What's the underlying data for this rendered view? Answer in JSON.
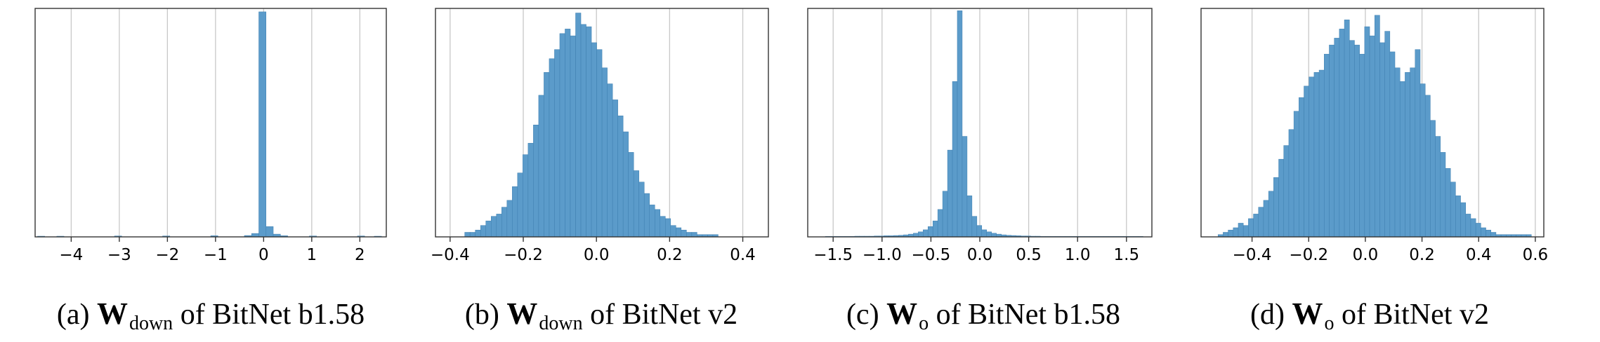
{
  "colors": {
    "bar_fill": "#5b9bca",
    "bar_stroke": "#3e7fb0",
    "grid": "#c8c8c8",
    "axis": "#333333"
  },
  "chart_data": [
    {
      "type": "histogram",
      "caption": {
        "label": "(a)",
        "symbol": "W",
        "subscript": "down",
        "text": "of BitNet b1.58"
      },
      "xlim": [
        -4.75,
        2.55
      ],
      "xticks": [
        -4,
        -3,
        -2,
        -1,
        0,
        1,
        2
      ],
      "xtick_labels": [
        "−4",
        "−3",
        "−2",
        "−1",
        "0",
        "1",
        "2"
      ],
      "ylim": [
        0,
        1.0
      ],
      "grid_x": true,
      "bins": [
        {
          "x0": -4.7,
          "x1": -4.55,
          "h": 0.003
        },
        {
          "x0": -4.3,
          "x1": -4.15,
          "h": 0.003
        },
        {
          "x0": -3.1,
          "x1": -2.95,
          "h": 0.004
        },
        {
          "x0": -2.1,
          "x1": -1.95,
          "h": 0.004
        },
        {
          "x0": -1.1,
          "x1": -0.95,
          "h": 0.005
        },
        {
          "x0": -0.4,
          "x1": -0.25,
          "h": 0.006
        },
        {
          "x0": -0.25,
          "x1": -0.1,
          "h": 0.015
        },
        {
          "x0": -0.1,
          "x1": 0.05,
          "h": 0.985
        },
        {
          "x0": 0.05,
          "x1": 0.2,
          "h": 0.045
        },
        {
          "x0": 0.2,
          "x1": 0.35,
          "h": 0.012
        },
        {
          "x0": 0.35,
          "x1": 0.5,
          "h": 0.005
        },
        {
          "x0": 0.95,
          "x1": 1.1,
          "h": 0.004
        },
        {
          "x0": 1.95,
          "x1": 2.1,
          "h": 0.004
        },
        {
          "x0": 2.3,
          "x1": 2.45,
          "h": 0.003
        }
      ]
    },
    {
      "type": "histogram",
      "caption": {
        "label": "(b)",
        "symbol": "W",
        "subscript": "down",
        "text": "of BitNet v2"
      },
      "xlim": [
        -0.44,
        0.47
      ],
      "xticks": [
        -0.4,
        -0.2,
        0.0,
        0.2,
        0.4
      ],
      "xtick_labels": [
        "−0.4",
        "−0.2",
        "0.0",
        "0.2",
        "0.4"
      ],
      "ylim": [
        0,
        1.0
      ],
      "grid_x": true,
      "bins_start": -0.36,
      "bin_width": 0.01443,
      "heights": [
        0.02,
        0.02,
        0.03,
        0.05,
        0.07,
        0.09,
        0.1,
        0.13,
        0.16,
        0.22,
        0.28,
        0.36,
        0.41,
        0.49,
        0.62,
        0.72,
        0.78,
        0.82,
        0.89,
        0.91,
        0.88,
        0.98,
        0.93,
        0.92,
        0.85,
        0.82,
        0.74,
        0.67,
        0.6,
        0.53,
        0.46,
        0.37,
        0.29,
        0.24,
        0.19,
        0.14,
        0.12,
        0.09,
        0.08,
        0.05,
        0.04,
        0.03,
        0.02,
        0.02,
        0.01,
        0.01,
        0.01,
        0.01
      ]
    },
    {
      "type": "histogram",
      "caption": {
        "label": "(c)",
        "symbol": "W",
        "subscript": "o",
        "text": "of BitNet b1.58"
      },
      "xlim": [
        -1.76,
        1.76
      ],
      "xticks": [
        -1.5,
        -1.0,
        -0.5,
        0.0,
        0.5,
        1.0,
        1.5
      ],
      "xtick_labels": [
        "−1.5",
        "−1.0",
        "−0.5",
        "0.0",
        "0.5",
        "1.0",
        "1.5"
      ],
      "ylim": [
        0,
        1.0
      ],
      "grid_x": true,
      "bins_start": -1.58,
      "bin_width": 0.05,
      "heights": [
        0.002,
        0.002,
        0.002,
        0.002,
        0.002,
        0.002,
        0.003,
        0.003,
        0.003,
        0.003,
        0.004,
        0.004,
        0.005,
        0.005,
        0.006,
        0.007,
        0.009,
        0.012,
        0.016,
        0.022,
        0.031,
        0.045,
        0.07,
        0.12,
        0.2,
        0.38,
        0.68,
        0.99,
        0.44,
        0.18,
        0.09,
        0.05,
        0.031,
        0.022,
        0.016,
        0.012,
        0.009,
        0.007,
        0.006,
        0.005,
        0.004,
        0.004,
        0.003,
        0.003,
        0.002,
        0.002,
        0.002,
        0.002,
        0.002,
        0.002,
        0.002,
        0.002,
        0.002,
        0.002,
        0.002,
        0.002,
        0.002,
        0.002,
        0.002,
        0.002,
        0.002,
        0.002,
        0.002,
        0.002,
        0.002
      ]
    },
    {
      "type": "histogram",
      "caption": {
        "label": "(d)",
        "symbol": "W",
        "subscript": "o",
        "text": "of BitNet v2"
      },
      "xlim": [
        -0.58,
        0.63
      ],
      "xticks": [
        -0.4,
        -0.2,
        0.0,
        0.2,
        0.4,
        0.6
      ],
      "xtick_labels": [
        "−0.4",
        "−0.2",
        "0.0",
        "0.2",
        "0.4",
        "0.6"
      ],
      "ylim": [
        0,
        1.0
      ],
      "grid_x": true,
      "bins_start": -0.52,
      "bin_width": 0.01784,
      "heights": [
        0.01,
        0.02,
        0.03,
        0.04,
        0.06,
        0.05,
        0.08,
        0.1,
        0.13,
        0.16,
        0.2,
        0.26,
        0.34,
        0.4,
        0.47,
        0.55,
        0.61,
        0.66,
        0.7,
        0.72,
        0.73,
        0.8,
        0.84,
        0.87,
        0.91,
        0.95,
        0.86,
        0.84,
        0.8,
        0.92,
        0.88,
        0.97,
        0.85,
        0.9,
        0.81,
        0.74,
        0.68,
        0.72,
        0.74,
        0.82,
        0.67,
        0.62,
        0.51,
        0.44,
        0.37,
        0.3,
        0.24,
        0.18,
        0.15,
        0.1,
        0.08,
        0.06,
        0.04,
        0.03,
        0.02,
        0.01,
        0.01,
        0.01,
        0.01,
        0.01,
        0.01,
        0.01
      ]
    }
  ]
}
